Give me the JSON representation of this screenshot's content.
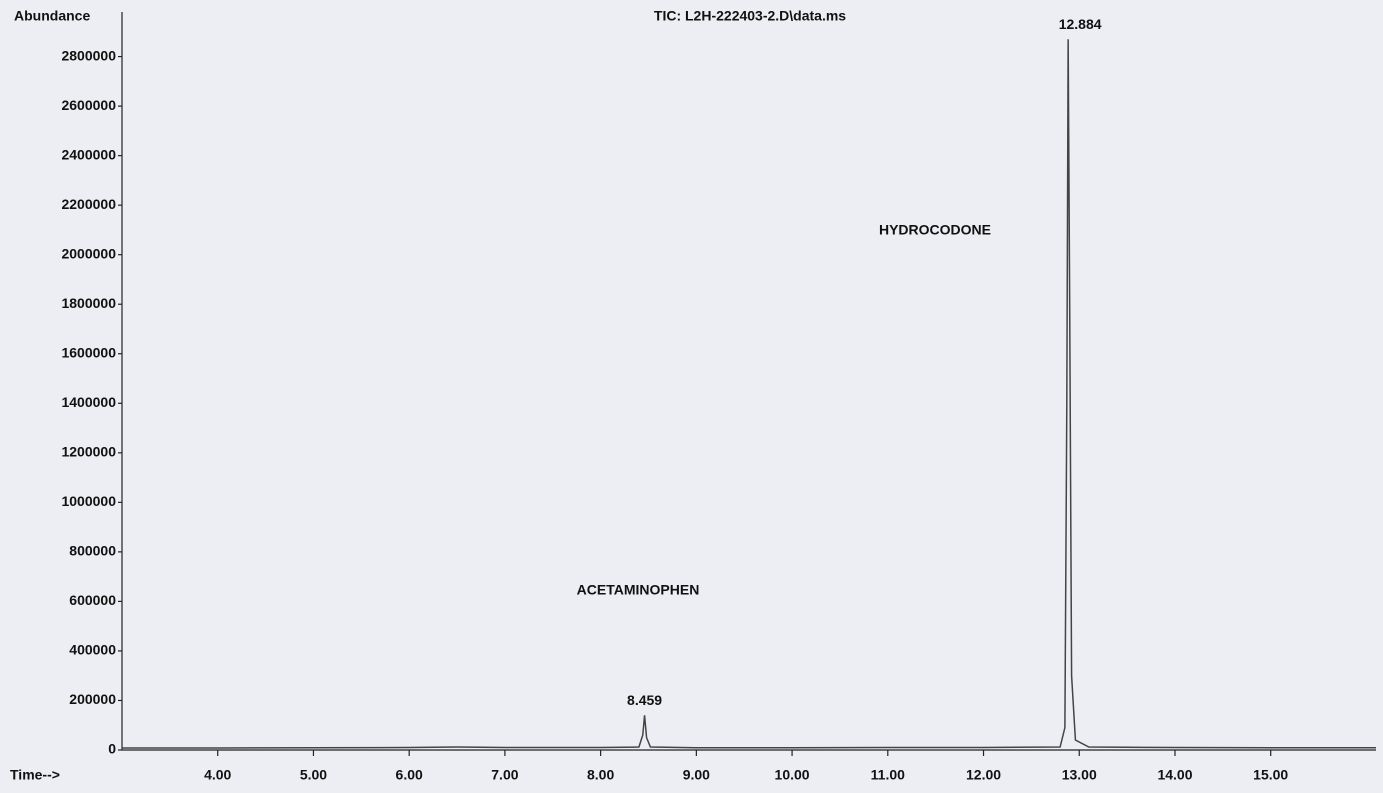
{
  "chart_data": {
    "type": "line",
    "title": "TIC: L2H-222403-2.D\\data.ms",
    "y_label": "Abundance",
    "x_label": "Time-->",
    "xlim": [
      3.0,
      16.1
    ],
    "ylim": [
      0,
      2980000
    ],
    "xticks": [
      {
        "value": 4,
        "label": "4.00"
      },
      {
        "value": 5,
        "label": "5.00"
      },
      {
        "value": 6,
        "label": "6.00"
      },
      {
        "value": 7,
        "label": "7.00"
      },
      {
        "value": 8,
        "label": "8.00"
      },
      {
        "value": 9,
        "label": "9.00"
      },
      {
        "value": 10,
        "label": "10.00"
      },
      {
        "value": 11,
        "label": "11.00"
      },
      {
        "value": 12,
        "label": "12.00"
      },
      {
        "value": 13,
        "label": "13.00"
      },
      {
        "value": 14,
        "label": "14.00"
      },
      {
        "value": 15,
        "label": "15.00"
      }
    ],
    "yticks": [
      0,
      200000,
      400000,
      600000,
      800000,
      1000000,
      1200000,
      1400000,
      1600000,
      1800000,
      2000000,
      2200000,
      2400000,
      2600000,
      2800000
    ],
    "series": [
      {
        "name": "TIC",
        "color": "#444444",
        "x": [
          3.0,
          4.0,
          5.0,
          6.0,
          6.5,
          7.0,
          8.0,
          8.4,
          8.44,
          8.459,
          8.48,
          8.52,
          9.0,
          10.0,
          11.0,
          12.0,
          12.8,
          12.85,
          12.87,
          12.884,
          12.9,
          12.92,
          12.96,
          13.1,
          14.0,
          15.0,
          16.1
        ],
        "values": [
          8000,
          8000,
          9000,
          10000,
          12000,
          10000,
          10000,
          12000,
          60000,
          140000,
          50000,
          12000,
          9000,
          9000,
          10000,
          10000,
          12000,
          90000,
          1400000,
          2870000,
          1800000,
          300000,
          40000,
          12000,
          10000,
          9000,
          9000
        ]
      }
    ],
    "peaks": [
      {
        "name": "ACETAMINOPHEN",
        "time": 8.459,
        "abundance": 140000
      },
      {
        "name": "HYDROCODONE",
        "time": 12.884,
        "abundance": 2870000
      }
    ]
  }
}
